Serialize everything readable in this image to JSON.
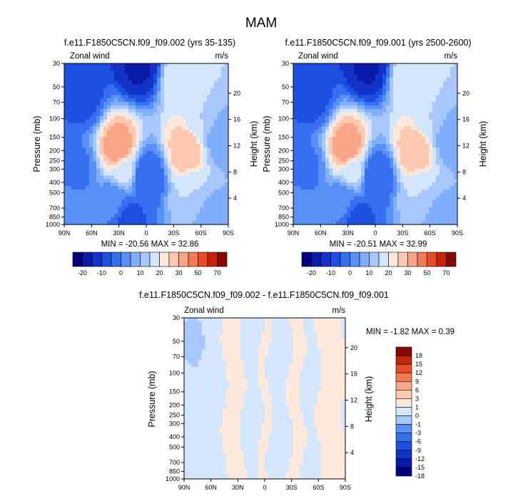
{
  "figure_title": "MAM",
  "chart_data": [
    {
      "type": "heatmap",
      "title": "f.e11.F1850C5CN.f09_f09.002 (yrs 35-135)",
      "left_label": "Zonal wind",
      "right_label": "m/s",
      "ylabel": "Pressure (mb)",
      "ylabel_right": "Height (km)",
      "x_ticks": [
        "90N",
        "60N",
        "30N",
        "0",
        "30S",
        "60S",
        "90S"
      ],
      "y_ticks": [
        "30",
        "50",
        "70",
        "100",
        "150",
        "200",
        "250",
        "300",
        "400",
        "500",
        "700",
        "850",
        "1000"
      ],
      "height_ticks": [
        "20",
        "16",
        "12",
        "8",
        "4"
      ],
      "stats": "MIN = -20.56  MAX =  32.86",
      "min": -20.56,
      "max": 32.86,
      "features": [
        {
          "lat": 70,
          "p": 60,
          "value": -12
        },
        {
          "lat": 8,
          "p": 30,
          "value": -20.56
        },
        {
          "lat": 0,
          "p": 350,
          "value": -10
        },
        {
          "lat": 20,
          "p": 900,
          "value": -12
        },
        {
          "lat": 75,
          "p": 300,
          "value": -6
        },
        {
          "lat": 35,
          "p": 600,
          "value": -4
        },
        {
          "lat": 80,
          "p": 800,
          "value": -3
        },
        {
          "lat": 30,
          "p": 200,
          "value": 30
        },
        {
          "lat": 25,
          "p": 300,
          "value": 12
        },
        {
          "lat": -45,
          "p": 200,
          "value": 25
        },
        {
          "lat": -40,
          "p": 40,
          "value": 15
        },
        {
          "lat": -50,
          "p": 500,
          "value": 10
        },
        {
          "lat": -70,
          "p": 900,
          "value": 2
        },
        {
          "lat": -60,
          "p": 100,
          "value": 10
        },
        {
          "lat": -80,
          "p": 150,
          "value": 2
        }
      ]
    },
    {
      "type": "heatmap",
      "title": "f.e11.F1850C5CN.f09_f09.001 (yrs 2500-2600)",
      "left_label": "Zonal wind",
      "right_label": "m/s",
      "ylabel": "Pressure (mb)",
      "ylabel_right": "Height (km)",
      "x_ticks": [
        "90N",
        "60N",
        "30N",
        "0",
        "30S",
        "60S",
        "90S"
      ],
      "y_ticks": [
        "30",
        "50",
        "70",
        "100",
        "150",
        "200",
        "250",
        "300",
        "400",
        "500",
        "700",
        "850",
        "1000"
      ],
      "height_ticks": [
        "20",
        "16",
        "12",
        "8",
        "4"
      ],
      "stats": "MIN = -20.51  MAX =  32.99",
      "min": -20.51,
      "max": 32.99,
      "features": [
        {
          "lat": 70,
          "p": 60,
          "value": -12
        },
        {
          "lat": 8,
          "p": 30,
          "value": -20.51
        },
        {
          "lat": 0,
          "p": 350,
          "value": -10
        },
        {
          "lat": 20,
          "p": 900,
          "value": -12
        },
        {
          "lat": 75,
          "p": 300,
          "value": -6
        },
        {
          "lat": 35,
          "p": 600,
          "value": -4
        },
        {
          "lat": 80,
          "p": 800,
          "value": -3
        },
        {
          "lat": 30,
          "p": 200,
          "value": 30
        },
        {
          "lat": 25,
          "p": 300,
          "value": 12
        },
        {
          "lat": -45,
          "p": 200,
          "value": 25
        },
        {
          "lat": -40,
          "p": 40,
          "value": 15
        },
        {
          "lat": -50,
          "p": 500,
          "value": 10
        },
        {
          "lat": -70,
          "p": 900,
          "value": 2
        },
        {
          "lat": -60,
          "p": 100,
          "value": 10
        },
        {
          "lat": -80,
          "p": 150,
          "value": 2
        }
      ]
    },
    {
      "type": "heatmap",
      "title": "f.e11.F1850C5CN.f09_f09.002 - f.e11.F1850C5CN.f09_f09.001",
      "left_label": "Zonal wind",
      "right_label": "m/s",
      "ylabel": "Pressure (mb)",
      "ylabel_right": "Height (km)",
      "x_ticks": [
        "90N",
        "60N",
        "30N",
        "0",
        "30S",
        "60S",
        "90S"
      ],
      "y_ticks": [
        "30",
        "50",
        "70",
        "100",
        "150",
        "200",
        "250",
        "300",
        "400",
        "500",
        "700",
        "850",
        "1000"
      ],
      "height_ticks": [
        "20",
        "16",
        "12",
        "8",
        "4"
      ],
      "stats": "MIN = -1.82  MAX =  0.39",
      "min": -1.82,
      "max": 0.39,
      "bands": [
        {
          "lat_from": 90,
          "lat_to": 70,
          "value": -0.5
        },
        {
          "lat_from": 45,
          "lat_to": 25,
          "value": 0.2
        },
        {
          "lat_from": 5,
          "lat_to": -5,
          "value": 0.2
        },
        {
          "lat_from": -28,
          "lat_to": -42,
          "value": 0.2
        },
        {
          "lat_from": -60,
          "lat_to": -90,
          "value": 0.2
        }
      ],
      "features": [
        {
          "lat": 80,
          "p": 50,
          "value": -1.82
        }
      ]
    }
  ],
  "colorbars": [
    {
      "orientation": "horizontal",
      "levels": [
        -25,
        -20,
        -15,
        -10,
        -5,
        0,
        5,
        10,
        15,
        20,
        25,
        30,
        40,
        50,
        60,
        70
      ],
      "labels": [
        "-20",
        "-10",
        "0",
        "10",
        "20",
        "30",
        "50",
        "70"
      ],
      "colors": [
        "#00007f",
        "#0a1aa8",
        "#1232c8",
        "#1d50e0",
        "#3670f0",
        "#5890f7",
        "#7eaefc",
        "#a8c8fd",
        "#d4e6fd",
        "#fde8dc",
        "#fcc8b0",
        "#f9a588",
        "#f47a55",
        "#e94b25",
        "#c8240c",
        "#870a00"
      ]
    },
    {
      "orientation": "vertical",
      "levels": [
        -18,
        -15,
        -12,
        -9,
        -6,
        -3,
        -1,
        0,
        1,
        3,
        6,
        9,
        12,
        15,
        18
      ],
      "labels": [
        "18",
        "15",
        "12",
        "9",
        "6",
        "3",
        "1",
        "0",
        "-1",
        "-3",
        "-6",
        "-9",
        "-12",
        "-15",
        "-18"
      ],
      "colors": [
        "#00007f",
        "#0a1aa8",
        "#1232c8",
        "#1d50e0",
        "#3670f0",
        "#5890f7",
        "#a8c8fd",
        "#d4e6fd",
        "#fde8dc",
        "#fcc8b0",
        "#f9a588",
        "#f47a55",
        "#e94b25",
        "#c8240c",
        "#870a00"
      ]
    }
  ]
}
